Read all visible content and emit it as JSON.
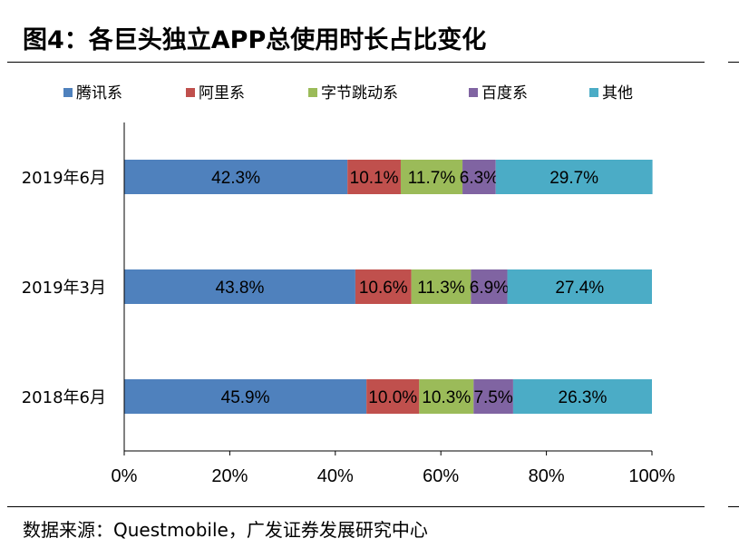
{
  "header": {
    "title": "图4：各巨头独立APP总使用时长占比变化"
  },
  "footer": {
    "source": "数据来源：Questmobile，广发证券发展研究中心"
  },
  "chart_data": {
    "type": "bar",
    "orientation": "horizontal",
    "stacked": true,
    "percent": true,
    "categories": [
      "2019年6月",
      "2019年3月",
      "2018年6月"
    ],
    "series": [
      {
        "name": "腾讯系",
        "color": "#4F81BD",
        "values": [
          42.3,
          43.8,
          45.9
        ],
        "labels": [
          "42.3%",
          "43.8%",
          "45.9%"
        ]
      },
      {
        "name": "阿里系",
        "color": "#C0504D",
        "values": [
          10.1,
          10.6,
          10.0
        ],
        "labels": [
          "10.1%",
          "10.6%",
          "10.0%"
        ]
      },
      {
        "name": "字节跳动系",
        "color": "#9BBB59",
        "values": [
          11.7,
          11.3,
          10.3
        ],
        "labels": [
          "11.7%",
          "11.3%",
          "10.3%"
        ]
      },
      {
        "name": "百度系",
        "color": "#8064A2",
        "values": [
          6.3,
          6.9,
          7.5
        ],
        "labels": [
          "6.3%",
          "6.9%",
          "7.5%"
        ]
      },
      {
        "name": "其他",
        "color": "#4BACC6",
        "values": [
          29.7,
          27.4,
          26.3
        ],
        "labels": [
          "29.7%",
          "27.4%",
          "26.3%"
        ]
      }
    ],
    "xlim": [
      0,
      100
    ],
    "xticks": [
      "0%",
      "20%",
      "40%",
      "60%",
      "80%",
      "100%"
    ],
    "legend_position": "top",
    "grid": false
  }
}
